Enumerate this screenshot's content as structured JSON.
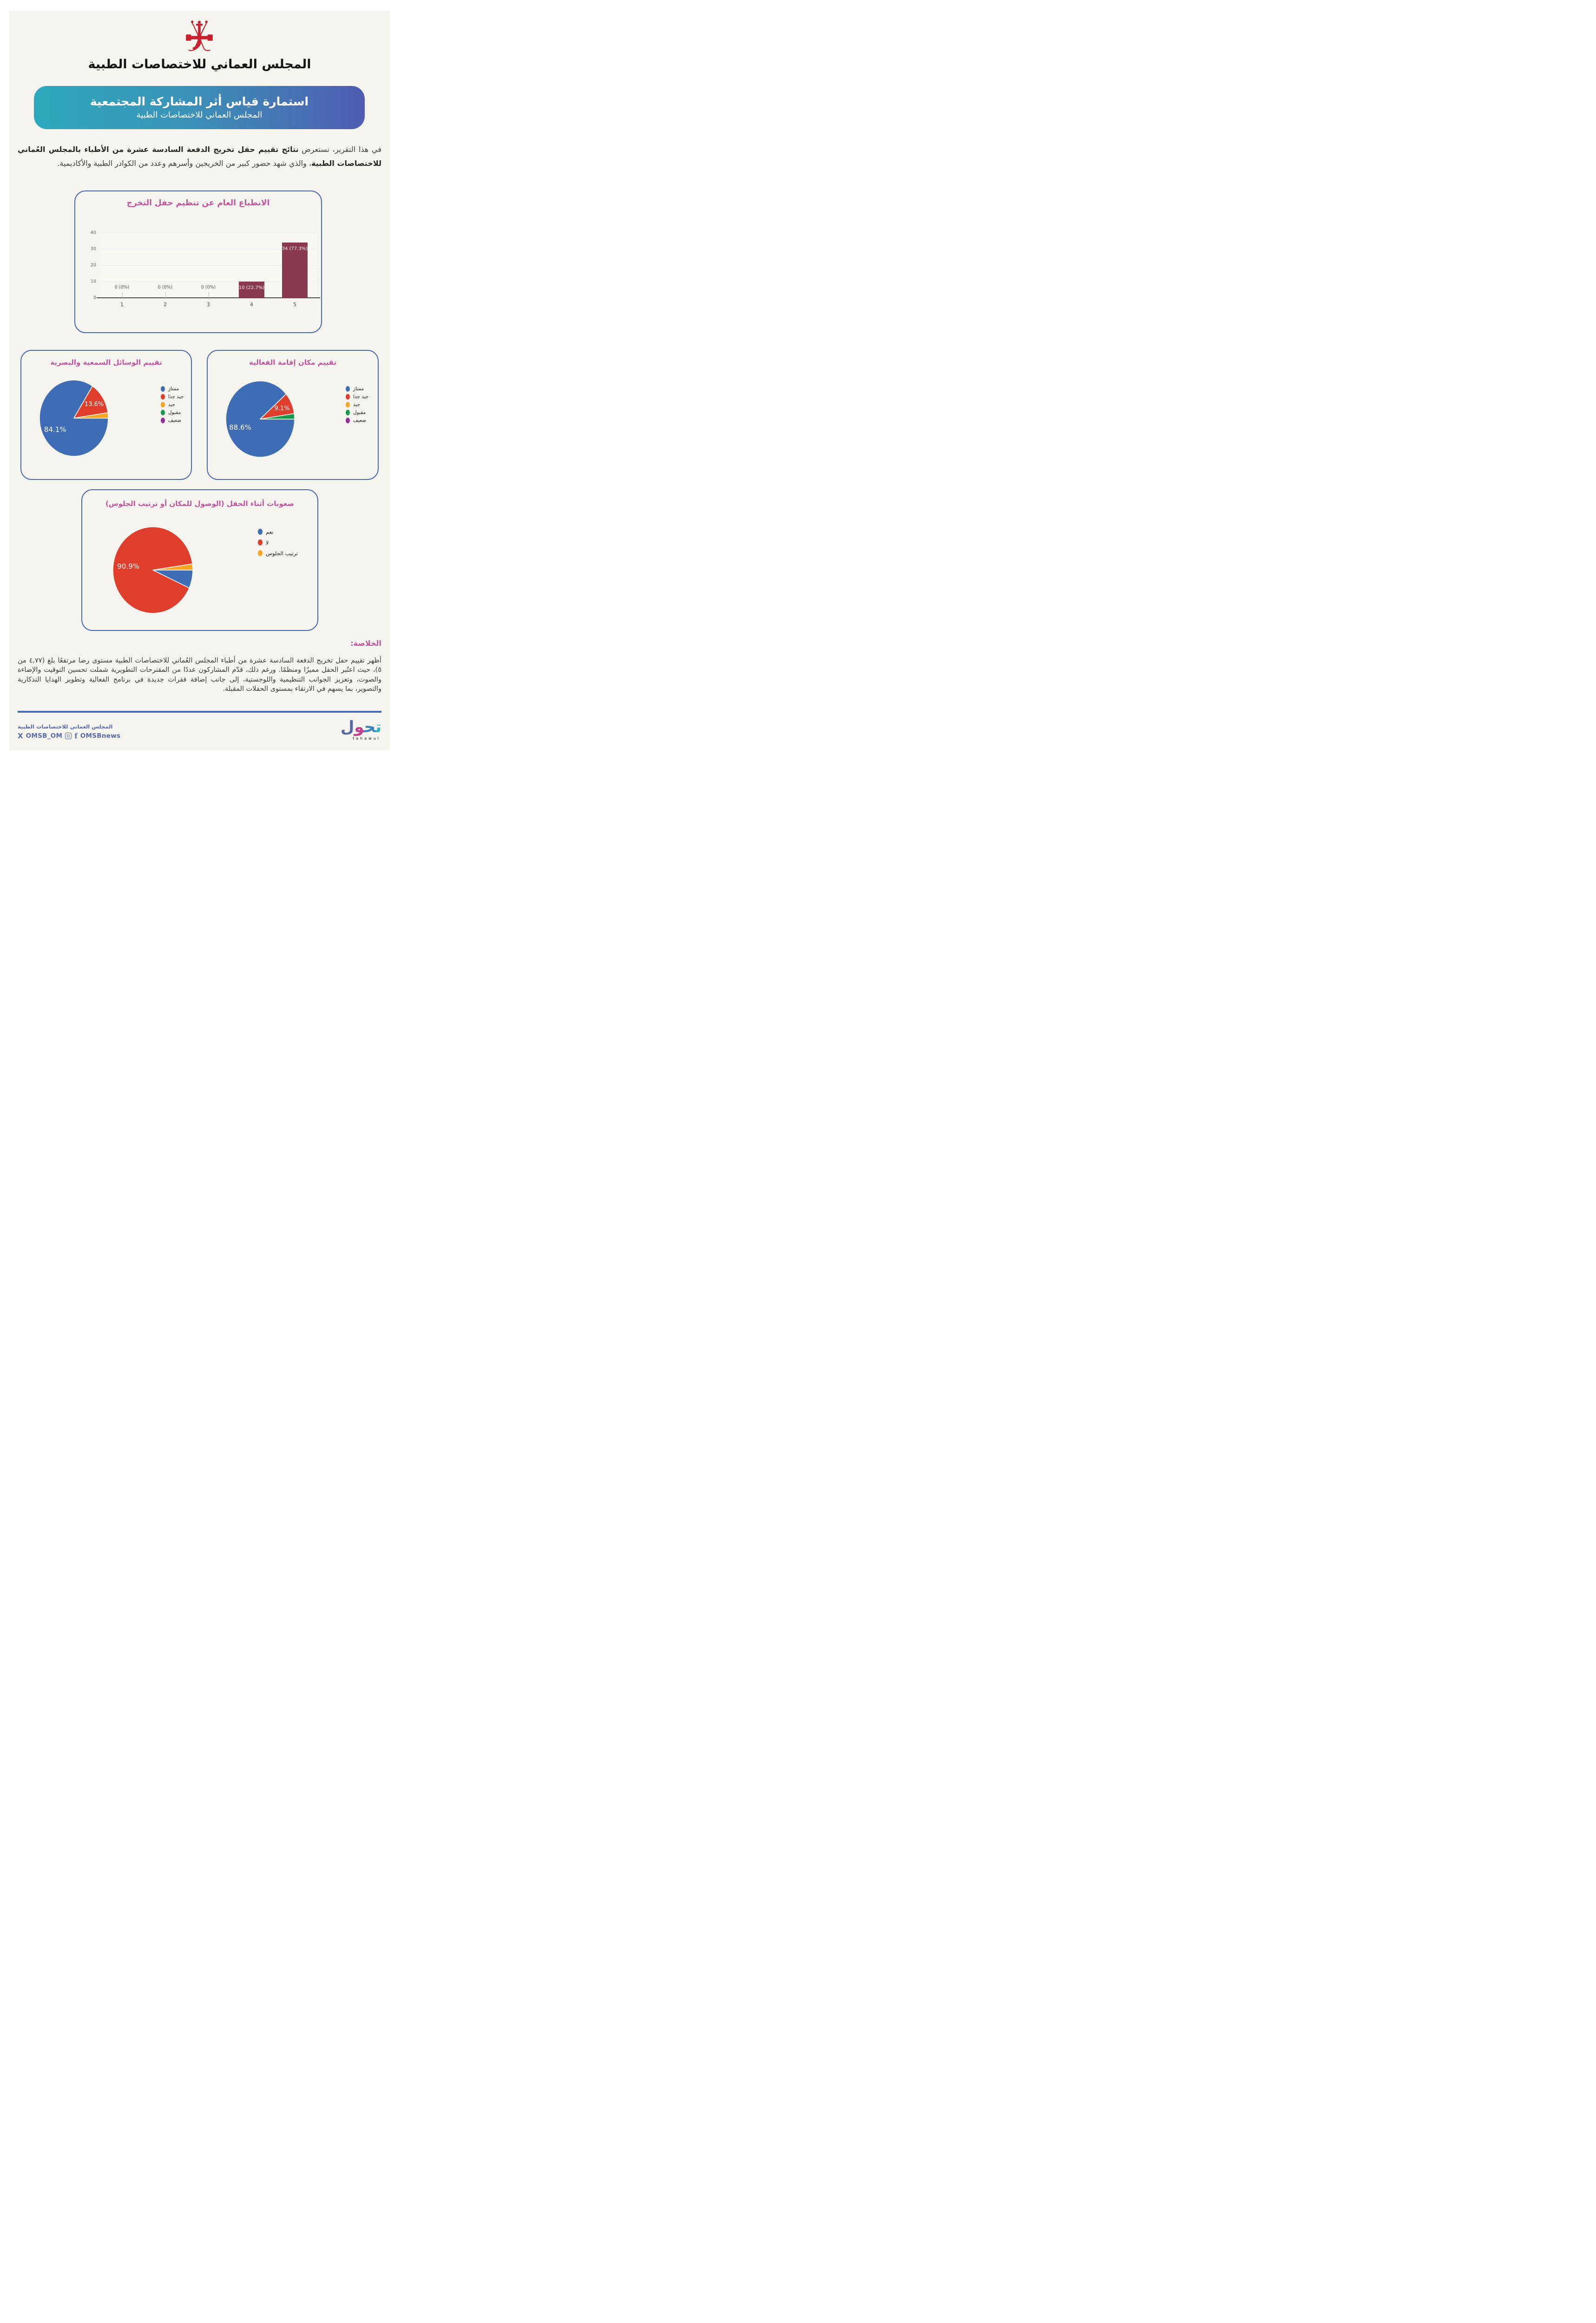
{
  "page": {
    "background": "#f5f4ee",
    "frame": "#ffffff"
  },
  "colors": {
    "accent_pink": "#c4539e",
    "card_border": "#4a68b3",
    "banner_gradient": [
      "#2ea9bc",
      "#4f5cb2"
    ],
    "bar": "#8a3a4e",
    "pie_palette": [
      "#3e6db5",
      "#e03e2d",
      "#f6a623",
      "#17984c",
      "#942d9b"
    ],
    "divider": "#4a68b3",
    "footer_text": "#5668ae",
    "emblem_red": "#c8202f",
    "logo": [
      "#2fb3c4",
      "#3b82be",
      "#c2408f",
      "#5668ae"
    ]
  },
  "header": {
    "calligraphy": "المجلس العماني للاختصاصات الطبية"
  },
  "banner": {
    "title": "استمارة قياس أثر المشاركة المجتمعية",
    "subtitle": "المجلس العماني للاختصاصات الطبية"
  },
  "intro": {
    "pre": "في هذا التقرير، نستعرض ",
    "bold": "نتائج تقييم حفل تخريج الدفعة السادسة عشرة من الأطباء بالمجلس العُماني للاختصاصات الطبية",
    "post": "، والذي شهد حضور كبير من الخريجين وأسرهم وعدد من الكوادر الطبية والأكاديمية."
  },
  "chart_data": [
    {
      "type": "bar",
      "title": "الانطباع العام عن تنظيم حفل التخرج",
      "categories": [
        "1",
        "2",
        "3",
        "4",
        "5"
      ],
      "values": [
        0,
        0,
        0,
        10,
        34
      ],
      "value_labels": [
        "0 (0%)",
        "0 (0%)",
        "0 (0%)",
        "10 (22.7%)",
        "34 (77.3%)"
      ],
      "ylim": [
        0,
        40
      ],
      "yticks": [
        0,
        10,
        20,
        30,
        40
      ],
      "grid": true,
      "bar_color": "#8a3a4e"
    },
    {
      "type": "pie",
      "title": "تقييم الوسائل السمعية والبصرية",
      "labels": [
        "ممتاز",
        "جيد جدا",
        "جيد",
        "مقبول",
        "ضعيف"
      ],
      "values": [
        84.1,
        13.6,
        2.3,
        0,
        0
      ],
      "value_labels": [
        "84.1%",
        "13.6%",
        "",
        "",
        ""
      ],
      "colors": [
        "#3e6db5",
        "#e03e2d",
        "#f6a623",
        "#17984c",
        "#942d9b"
      ],
      "legend_position": "right",
      "start_angle": "3-oclock-clockwise"
    },
    {
      "type": "pie",
      "title": "تقييم مكان إقامة الفعالية",
      "labels": [
        "ممتاز",
        "جيد جدا",
        "جيد",
        "مقبول",
        "ضعيف"
      ],
      "values": [
        88.6,
        9.1,
        0,
        2.3,
        0
      ],
      "value_labels": [
        "88.6%",
        "9.1%",
        "",
        "",
        ""
      ],
      "colors": [
        "#3e6db5",
        "#e03e2d",
        "#f6a623",
        "#17984c",
        "#942d9b"
      ],
      "legend_position": "right",
      "start_angle": "3-oclock-clockwise"
    },
    {
      "type": "pie",
      "title": "صعوبات أثناء الحفل (الوصول للمكان أو ترتيب الجلوس)",
      "labels": [
        "نعم",
        "لا",
        "ترتيب الجلوس"
      ],
      "values": [
        6.8,
        90.9,
        2.3
      ],
      "value_labels": [
        "",
        "90.9%",
        ""
      ],
      "colors": [
        "#3e6db5",
        "#e03e2d",
        "#f6a623"
      ],
      "legend_position": "right",
      "start_angle": "3-oclock-clockwise"
    }
  ],
  "summary": {
    "heading": "الخلاصة:",
    "text": "أظهر تقييم حفل تخريج الدفعة السادسة عشرة من أطباء المجلس العُماني للاختصاصات الطبية مستوى رضا مرتفعًا بلغ (٤,٧٧ من ٥)، حيث اعتُبر الحفل مميزًا ومنظمًا. ورغم ذلك، قدّم المشاركون عددًا من المقترحات التطويرية شملت تحسين التوقيت والإضاءة والصوت، وتعزيز الجوانب التنظيمية واللوجستية، إلى جانب إضافة فقرات جديدة في برنامج الفعالية وتطوير الهدايا التذكارية والتصوير، بما يسهم في الارتقاء بمستوى الحفلات المقبلة."
  },
  "footer": {
    "org": "المجلس العماني للاختصاصات الطبية",
    "x_handle": "OMSB_OM",
    "news_handle": "OMSBnews",
    "logo_letters": [
      "ت",
      "ح",
      "و",
      "ل"
    ],
    "logo_latin": "tahawul"
  }
}
